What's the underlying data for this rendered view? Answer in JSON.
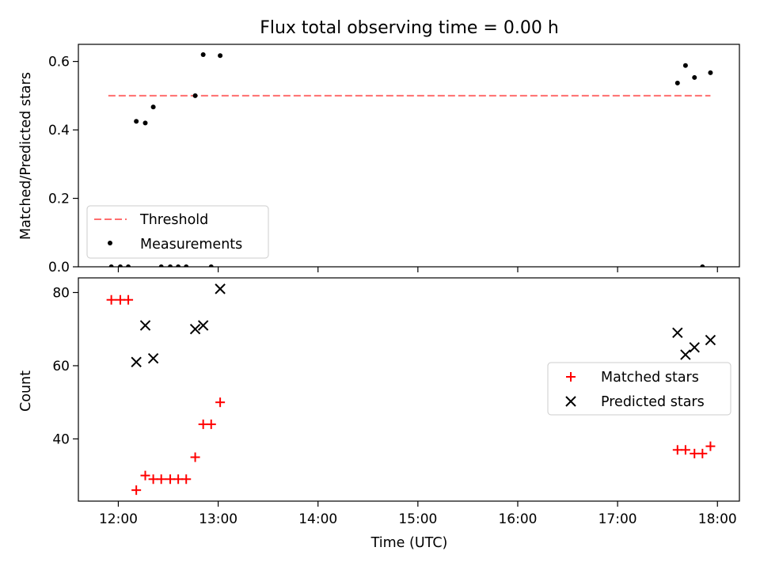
{
  "figure_title": "Flux total observing time = 0.00 h",
  "chart_data": [
    {
      "type": "scatter",
      "ylabel": "Matched/Predicted stars",
      "ylim": [
        0,
        0.65
      ],
      "yticks": [
        0.0,
        0.2,
        0.4,
        0.6
      ],
      "ytick_labels": [
        "0.0",
        "0.2",
        "0.4",
        "0.6"
      ],
      "xlim": [
        11.6,
        18.22
      ],
      "xticks": [
        12,
        13,
        14,
        15,
        16,
        17,
        18
      ],
      "threshold": {
        "name": "Threshold",
        "x": [
          11.9,
          17.93
        ],
        "y": 0.5,
        "color": "#ff6e6e"
      },
      "series": [
        {
          "name": "Measurements",
          "color": "#000000",
          "points": [
            [
              11.93,
              0.0
            ],
            [
              12.02,
              0.0
            ],
            [
              12.1,
              0.0
            ],
            [
              12.18,
              0.425
            ],
            [
              12.27,
              0.42
            ],
            [
              12.35,
              0.467
            ],
            [
              12.43,
              0.0
            ],
            [
              12.52,
              0.0
            ],
            [
              12.6,
              0.0
            ],
            [
              12.68,
              0.0
            ],
            [
              12.77,
              0.5
            ],
            [
              12.85,
              0.62
            ],
            [
              12.93,
              0.0
            ],
            [
              13.02,
              0.617
            ],
            [
              17.6,
              0.537
            ],
            [
              17.68,
              0.588
            ],
            [
              17.77,
              0.553
            ],
            [
              17.85,
              0.0
            ],
            [
              17.93,
              0.567
            ]
          ]
        }
      ],
      "legend": {
        "placement": "lower-left",
        "entries": [
          "Threshold",
          "Measurements"
        ]
      }
    },
    {
      "type": "scatter",
      "xlabel": "Time (UTC)",
      "ylabel": "Count",
      "ylim": [
        23,
        84
      ],
      "yticks": [
        40,
        60,
        80
      ],
      "ytick_labels": [
        "40",
        "60",
        "80"
      ],
      "xlim": [
        11.6,
        18.22
      ],
      "xticks": [
        12,
        13,
        14,
        15,
        16,
        17,
        18
      ],
      "xtick_labels": [
        "12:00",
        "13:00",
        "14:00",
        "15:00",
        "16:00",
        "17:00",
        "18:00"
      ],
      "series": [
        {
          "name": "Matched stars",
          "marker": "plus",
          "color": "#ff0000",
          "points": [
            [
              11.93,
              78
            ],
            [
              12.02,
              78
            ],
            [
              12.1,
              78
            ],
            [
              12.18,
              26
            ],
            [
              12.27,
              30
            ],
            [
              12.35,
              29
            ],
            [
              12.43,
              29
            ],
            [
              12.52,
              29
            ],
            [
              12.6,
              29
            ],
            [
              12.68,
              29
            ],
            [
              12.77,
              35
            ],
            [
              12.85,
              44
            ],
            [
              12.93,
              44
            ],
            [
              13.02,
              50
            ],
            [
              17.6,
              37
            ],
            [
              17.68,
              37
            ],
            [
              17.77,
              36
            ],
            [
              17.85,
              36
            ],
            [
              17.93,
              38
            ]
          ]
        },
        {
          "name": "Predicted stars",
          "marker": "x",
          "color": "#000000",
          "points": [
            [
              12.18,
              61
            ],
            [
              12.27,
              71
            ],
            [
              12.35,
              62
            ],
            [
              12.77,
              70
            ],
            [
              12.85,
              71
            ],
            [
              13.02,
              81
            ],
            [
              17.6,
              69
            ],
            [
              17.68,
              63
            ],
            [
              17.77,
              65
            ],
            [
              17.93,
              67
            ]
          ]
        }
      ],
      "legend": {
        "placement": "center-right",
        "entries": [
          "Matched stars",
          "Predicted stars"
        ]
      }
    }
  ]
}
